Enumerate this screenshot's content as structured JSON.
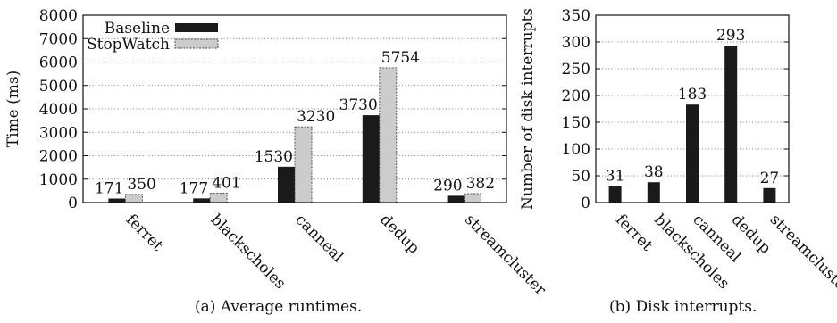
{
  "chart_data": [
    {
      "type": "bar",
      "caption": "(a) Average runtimes.",
      "ylabel": "Time (ms)",
      "xlabel": "",
      "ylim": [
        0,
        8000
      ],
      "yticks": [
        0,
        1000,
        2000,
        3000,
        4000,
        5000,
        6000,
        7000,
        8000
      ],
      "grid": true,
      "legend_position": "top-left",
      "categories": [
        "ferret",
        "blackscholes",
        "canneal",
        "dedup",
        "streamcluster"
      ],
      "series": [
        {
          "name": "Baseline",
          "values": [
            171,
            177,
            1530,
            3730,
            290
          ],
          "color": "#1a1a1a"
        },
        {
          "name": "StopWatch",
          "values": [
            350,
            401,
            3230,
            5754,
            382
          ],
          "color": "#cccccc"
        }
      ]
    },
    {
      "type": "bar",
      "caption": "(b) Disk interrupts.",
      "ylabel": "Number of disk interrupts",
      "xlabel": "",
      "ylim": [
        0,
        350
      ],
      "yticks": [
        0,
        50,
        100,
        150,
        200,
        250,
        300,
        350
      ],
      "grid": true,
      "categories": [
        "ferret",
        "blackscholes",
        "canneal",
        "dedup",
        "streamcluster"
      ],
      "series": [
        {
          "values": [
            31,
            38,
            183,
            293,
            27
          ],
          "color": "#1a1a1a"
        }
      ]
    }
  ]
}
